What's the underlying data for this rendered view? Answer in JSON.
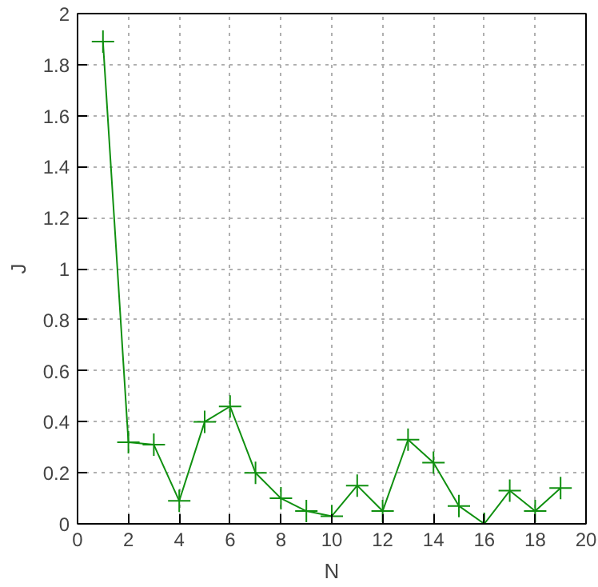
{
  "chart_data": {
    "type": "line",
    "xlabel": "N",
    "ylabel": "J",
    "x": [
      1,
      2,
      3,
      4,
      5,
      6,
      7,
      8,
      9,
      10,
      11,
      12,
      13,
      14,
      15,
      16,
      17,
      18,
      19
    ],
    "series": [
      {
        "color": "#109010",
        "values": [
          1.89,
          0.32,
          0.31,
          0.09,
          0.4,
          0.46,
          0.2,
          0.1,
          0.05,
          0.03,
          0.15,
          0.05,
          0.33,
          0.24,
          0.07,
          0.0,
          0.13,
          0.05,
          0.14
        ]
      }
    ],
    "xlim": [
      0,
      20
    ],
    "ylim": [
      0,
      2
    ],
    "xticks": [
      0,
      2,
      4,
      6,
      8,
      10,
      12,
      14,
      16,
      18,
      20
    ],
    "yticks": [
      0,
      0.2,
      0.4,
      0.6,
      0.8,
      1,
      1.2,
      1.4,
      1.6,
      1.8,
      2
    ],
    "grid": true,
    "marker": "cross",
    "line_style": "solid"
  }
}
